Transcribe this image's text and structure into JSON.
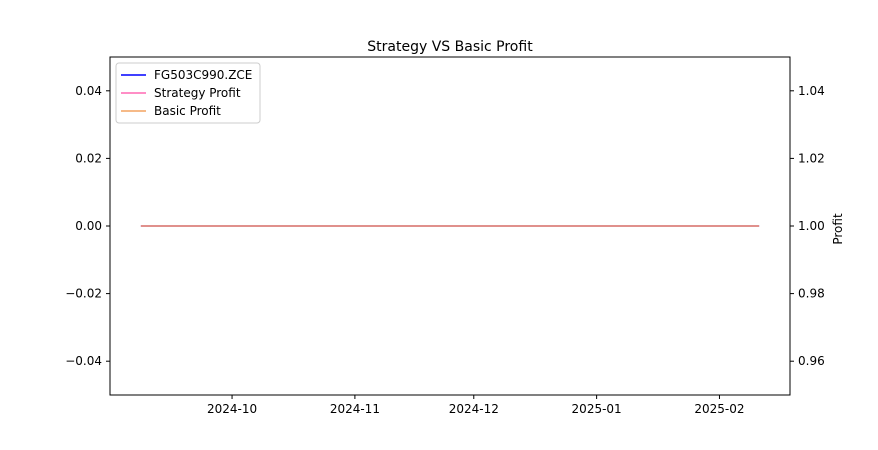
{
  "chart_data": {
    "type": "line",
    "title": "Strategy VS Basic Profit",
    "xlabel": "",
    "ylabel_left": "",
    "ylabel_right": "Profit",
    "x_range": [
      "2024-09-08",
      "2025-02-11"
    ],
    "x_ticks": [
      "2024-10",
      "2024-11",
      "2024-12",
      "2025-01",
      "2025-02"
    ],
    "ylim_left": [
      -0.05,
      0.05
    ],
    "ylim_right": [
      0.95,
      1.05
    ],
    "yticks_left": [
      "0.04",
      "0.02",
      "0.00",
      "−0.02",
      "−0.04"
    ],
    "yticks_right": [
      "1.04",
      "1.02",
      "1.00",
      "0.98",
      "0.96"
    ],
    "grid": false,
    "legend_position": "top-left",
    "series": [
      {
        "name": "FG503C990.ZCE",
        "axis": "left",
        "color": "#0000ff",
        "x": [
          "2024-09-08",
          "2025-02-11"
        ],
        "y": [
          0.0,
          0.0
        ]
      },
      {
        "name": "Strategy Profit",
        "axis": "right",
        "color": "#ff69b4",
        "x": [
          "2024-09-08",
          "2025-02-11"
        ],
        "y": [
          1.0,
          1.0
        ]
      },
      {
        "name": "Basic Profit",
        "axis": "right",
        "color": "#f4a460",
        "x": [
          "2024-09-08",
          "2025-02-11"
        ],
        "y": [
          1.0,
          1.0
        ]
      }
    ]
  }
}
